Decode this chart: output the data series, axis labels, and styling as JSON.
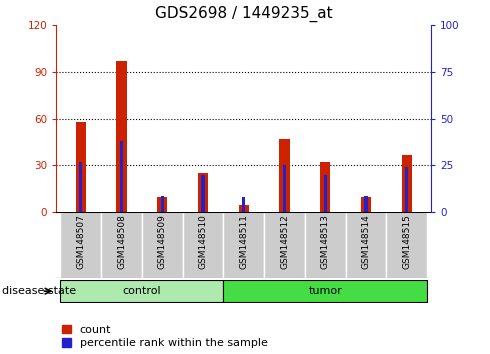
{
  "title": "GDS2698 / 1449235_at",
  "samples": [
    "GSM148507",
    "GSM148508",
    "GSM148509",
    "GSM148510",
    "GSM148511",
    "GSM148512",
    "GSM148513",
    "GSM148514",
    "GSM148515"
  ],
  "count_values": [
    58,
    97,
    10,
    25,
    5,
    47,
    32,
    10,
    37
  ],
  "percentile_values": [
    27,
    38,
    9,
    20,
    8,
    25,
    20,
    9,
    24
  ],
  "groups": [
    {
      "label": "control",
      "indices": [
        0,
        1,
        2,
        3
      ],
      "color": "#AEEAAE"
    },
    {
      "label": "tumor",
      "indices": [
        4,
        5,
        6,
        7,
        8
      ],
      "color": "#44DD44"
    }
  ],
  "left_ylim": [
    0,
    120
  ],
  "right_ylim": [
    0,
    100
  ],
  "left_yticks": [
    0,
    30,
    60,
    90,
    120
  ],
  "right_yticks": [
    0,
    25,
    50,
    75,
    100
  ],
  "count_color": "#CC2200",
  "percentile_color": "#2222CC",
  "red_bar_width": 0.25,
  "blue_bar_width": 0.08,
  "tick_area_color": "#CCCCCC",
  "grid_color": "#000000",
  "title_fontsize": 11,
  "tick_fontsize": 7.5,
  "label_fontsize": 8,
  "legend_count_label": "count",
  "legend_percentile_label": "percentile rank within the sample",
  "disease_state_label": "disease state"
}
